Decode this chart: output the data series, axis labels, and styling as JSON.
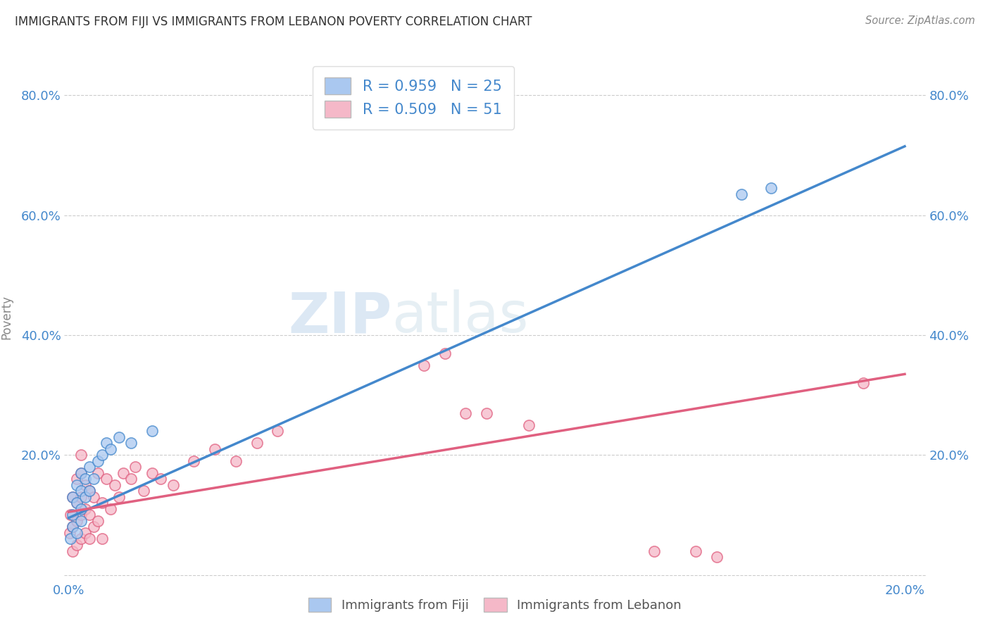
{
  "title": "IMMIGRANTS FROM FIJI VS IMMIGRANTS FROM LEBANON POVERTY CORRELATION CHART",
  "source": "Source: ZipAtlas.com",
  "ylabel": "Poverty",
  "xlim": [
    -0.001,
    0.205
  ],
  "ylim": [
    -0.01,
    0.87
  ],
  "fiji_color": "#aac8f0",
  "lebanon_color": "#f5b8c8",
  "fiji_line_color": "#4488cc",
  "lebanon_line_color": "#e06080",
  "fiji_R": 0.959,
  "fiji_N": 25,
  "lebanon_R": 0.509,
  "lebanon_N": 51,
  "legend_label_fiji": "Immigrants from Fiji",
  "legend_label_lebanon": "Immigrants from Lebanon",
  "watermark": "ZIPatlas",
  "fiji_scatter_x": [
    0.0005,
    0.001,
    0.001,
    0.001,
    0.002,
    0.002,
    0.002,
    0.003,
    0.003,
    0.003,
    0.003,
    0.004,
    0.004,
    0.005,
    0.005,
    0.006,
    0.007,
    0.008,
    0.009,
    0.01,
    0.012,
    0.015,
    0.02,
    0.161,
    0.168
  ],
  "fiji_scatter_y": [
    0.06,
    0.08,
    0.1,
    0.13,
    0.07,
    0.12,
    0.15,
    0.09,
    0.11,
    0.14,
    0.17,
    0.13,
    0.16,
    0.14,
    0.18,
    0.16,
    0.19,
    0.2,
    0.22,
    0.21,
    0.23,
    0.22,
    0.24,
    0.635,
    0.645
  ],
  "lebanon_scatter_x": [
    0.0003,
    0.0005,
    0.001,
    0.001,
    0.001,
    0.002,
    0.002,
    0.002,
    0.002,
    0.003,
    0.003,
    0.003,
    0.003,
    0.003,
    0.004,
    0.004,
    0.004,
    0.005,
    0.005,
    0.005,
    0.006,
    0.006,
    0.007,
    0.007,
    0.008,
    0.008,
    0.009,
    0.01,
    0.011,
    0.012,
    0.013,
    0.015,
    0.016,
    0.018,
    0.02,
    0.022,
    0.025,
    0.03,
    0.035,
    0.04,
    0.045,
    0.05,
    0.085,
    0.09,
    0.095,
    0.1,
    0.11,
    0.14,
    0.15,
    0.155,
    0.19
  ],
  "lebanon_scatter_y": [
    0.07,
    0.1,
    0.04,
    0.08,
    0.13,
    0.05,
    0.09,
    0.12,
    0.16,
    0.06,
    0.1,
    0.13,
    0.17,
    0.2,
    0.07,
    0.11,
    0.15,
    0.06,
    0.1,
    0.14,
    0.08,
    0.13,
    0.09,
    0.17,
    0.06,
    0.12,
    0.16,
    0.11,
    0.15,
    0.13,
    0.17,
    0.16,
    0.18,
    0.14,
    0.17,
    0.16,
    0.15,
    0.19,
    0.21,
    0.19,
    0.22,
    0.24,
    0.35,
    0.37,
    0.27,
    0.27,
    0.25,
    0.04,
    0.04,
    0.03,
    0.32
  ],
  "background_color": "#ffffff",
  "grid_color": "#cccccc",
  "axis_label_color": "#4488cc",
  "title_color": "#333333",
  "fiji_line_x0": 0.0,
  "fiji_line_y0": 0.095,
  "fiji_line_x1": 0.2,
  "fiji_line_y1": 0.715,
  "leb_line_x0": 0.0,
  "leb_line_y0": 0.105,
  "leb_line_x1": 0.2,
  "leb_line_y1": 0.335
}
